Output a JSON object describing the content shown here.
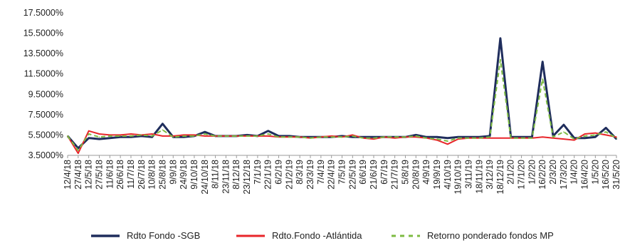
{
  "chart_data": {
    "type": "line",
    "title": "",
    "xlabel": "",
    "ylabel": "",
    "ylim": [
      3.5,
      17.5
    ],
    "y_ticks": [
      3.5,
      5.5,
      7.5,
      9.5,
      11.5,
      13.5,
      15.5,
      17.5
    ],
    "y_tick_labels": [
      "3.5000%",
      "5.5000%",
      "7.5000%",
      "9.5000%",
      "11.5000%",
      "13.5000%",
      "15.5000%",
      "17.5000%"
    ],
    "grid": false,
    "legend_position": "bottom",
    "x_tick_labels": [
      "12/4/18",
      "27/4/18",
      "12/5/18",
      "27/5/18",
      "11/6/18",
      "26/6/18",
      "11/7/18",
      "26/7/18",
      "10/8/18",
      "25/8/18",
      "9/9/18",
      "24/9/18",
      "9/10/18",
      "24/10/18",
      "8/11/18",
      "23/11/18",
      "8/12/18",
      "23/12/18",
      "7/1/19",
      "22/1/19",
      "6/2/19",
      "21/2/19",
      "8/3/19",
      "23/3/19",
      "7/4/19",
      "22/4/19",
      "7/5/19",
      "22/5/19",
      "6/6/19",
      "21/6/19",
      "6/7/19",
      "21/7/19",
      "5/8/19",
      "20/8/19",
      "4/9/19",
      "19/9/19",
      "4/10/19",
      "19/10/19",
      "3/11/19",
      "18/11/19",
      "3/12/19",
      "18/12/19",
      "2/1/20",
      "17/1/20",
      "1/2/20",
      "16/2/20",
      "2/3/20",
      "17/3/20",
      "1/4/20",
      "16/4/20",
      "1/5/20",
      "16/5/20",
      "31/5/20"
    ],
    "x": [
      "12/4/18",
      "27/4/18",
      "12/5/18",
      "27/5/18",
      "11/6/18",
      "26/6/18",
      "11/7/18",
      "26/7/18",
      "10/8/18",
      "25/8/18",
      "9/9/18",
      "24/9/18",
      "9/10/18",
      "24/10/18",
      "8/11/18",
      "23/11/18",
      "8/12/18",
      "23/12/18",
      "7/1/19",
      "22/1/19",
      "6/2/19",
      "21/2/19",
      "8/3/19",
      "23/3/19",
      "7/4/19",
      "22/4/19",
      "7/5/19",
      "22/5/19",
      "6/6/19",
      "21/6/19",
      "6/7/19",
      "21/7/19",
      "5/8/19",
      "20/8/19",
      "4/9/19",
      "19/9/19",
      "4/10/19",
      "19/10/19",
      "3/11/19",
      "18/11/19",
      "3/12/19",
      "18/12/19",
      "2/1/20",
      "17/1/20",
      "1/2/20",
      "16/2/20",
      "2/3/20",
      "17/3/20",
      "1/4/20",
      "16/4/20",
      "1/5/20",
      "16/5/20",
      "31/5/20"
    ],
    "series": [
      {
        "name": "Rdto Fondo -SGB",
        "color": "#1f2d5c",
        "values": [
          5.4,
          4.2,
          5.2,
          5.1,
          5.2,
          5.3,
          5.3,
          5.4,
          5.3,
          6.6,
          5.3,
          5.3,
          5.4,
          5.8,
          5.4,
          5.4,
          5.4,
          5.5,
          5.4,
          5.9,
          5.4,
          5.4,
          5.3,
          5.3,
          5.3,
          5.3,
          5.4,
          5.3,
          5.3,
          5.3,
          5.3,
          5.3,
          5.3,
          5.5,
          5.3,
          5.3,
          5.2,
          5.3,
          5.3,
          5.3,
          5.4,
          15.0,
          5.3,
          5.3,
          5.3,
          12.7,
          5.4,
          6.5,
          5.2,
          5.2,
          5.3,
          6.2,
          5.1
        ]
      },
      {
        "name": "Rdto.Fondo -Atlántida",
        "color": "#e8252a",
        "values": [
          5.4,
          3.7,
          5.9,
          5.6,
          5.5,
          5.5,
          5.6,
          5.5,
          5.6,
          5.4,
          5.4,
          5.5,
          5.5,
          5.4,
          5.4,
          5.4,
          5.4,
          5.4,
          5.4,
          5.4,
          5.3,
          5.3,
          5.3,
          5.2,
          5.3,
          5.4,
          5.3,
          5.5,
          5.2,
          5.1,
          5.3,
          5.2,
          5.3,
          5.3,
          5.2,
          5.0,
          4.6,
          5.1,
          5.2,
          5.2,
          5.2,
          5.2,
          5.2,
          5.2,
          5.2,
          5.3,
          5.2,
          5.1,
          5.0,
          5.6,
          5.7,
          5.5,
          5.3
        ]
      },
      {
        "name": "Retorno ponderado fondos MP",
        "color": "#7dbb42",
        "values": [
          5.4,
          4.0,
          5.6,
          5.3,
          5.4,
          5.4,
          5.4,
          5.5,
          5.4,
          6.0,
          5.3,
          5.4,
          5.4,
          5.6,
          5.4,
          5.4,
          5.4,
          5.4,
          5.4,
          5.6,
          5.3,
          5.3,
          5.3,
          5.2,
          5.3,
          5.3,
          5.3,
          5.4,
          5.2,
          5.2,
          5.3,
          5.3,
          5.3,
          5.4,
          5.2,
          5.1,
          4.9,
          5.2,
          5.2,
          5.2,
          5.3,
          12.9,
          5.2,
          5.2,
          5.2,
          11.0,
          5.3,
          5.8,
          5.1,
          5.4,
          5.5,
          5.8,
          5.2
        ]
      }
    ]
  }
}
